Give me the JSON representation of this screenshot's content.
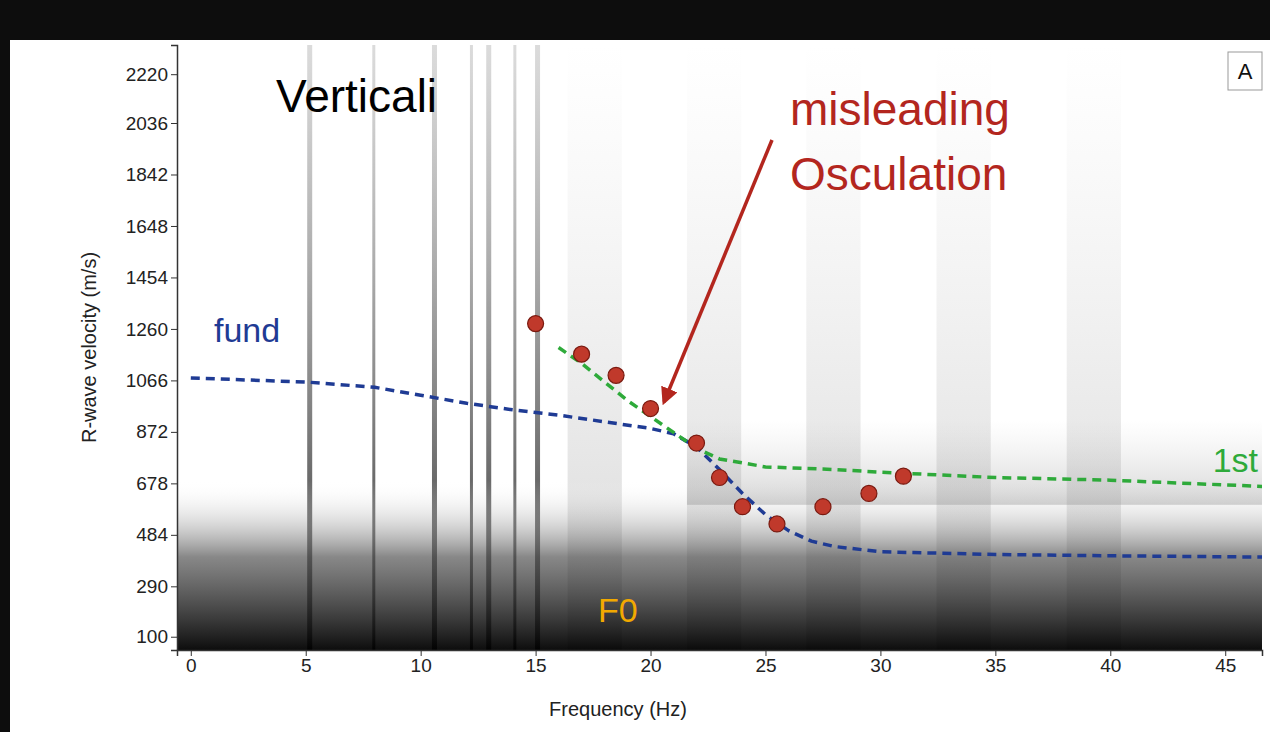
{
  "chart_data": {
    "type": "line",
    "panel_label": "A",
    "x_label": "Frequency (Hz)",
    "y_label": "R-wave velocity (m/s)",
    "xlim": [
      -0.6,
      46.6
    ],
    "xticks": [
      0,
      5,
      10,
      15,
      20,
      25,
      30,
      35,
      40,
      45
    ],
    "ylim": [
      50,
      2330
    ],
    "yticks": [
      100,
      290,
      484,
      678,
      872,
      1066,
      1260,
      1454,
      1648,
      1842,
      2036,
      2220
    ],
    "grid": false,
    "series": [
      {
        "name": "fund",
        "color": "#1f3b94",
        "line_style": "dashed",
        "x": [
          0,
          5,
          8,
          10,
          12,
          14,
          16,
          18,
          20,
          21,
          22,
          23,
          24,
          25,
          26,
          27,
          28,
          30,
          35,
          40,
          47
        ],
        "values": [
          1075,
          1060,
          1040,
          1010,
          980,
          955,
          935,
          910,
          885,
          865,
          815,
          730,
          640,
          560,
          500,
          460,
          440,
          420,
          410,
          405,
          400
        ]
      },
      {
        "name": "1st",
        "color": "#2eaa3a",
        "line_style": "dashed",
        "x": [
          16,
          17,
          18,
          19,
          20,
          21,
          22,
          23,
          25,
          28,
          30,
          35,
          40,
          47
        ],
        "values": [
          1190,
          1130,
          1060,
          990,
          930,
          870,
          810,
          770,
          740,
          730,
          720,
          700,
          690,
          665
        ]
      },
      {
        "type": "scatter",
        "marker": "circle",
        "color": "#c0392b",
        "x": [
          15,
          17,
          18.5,
          20,
          22,
          23,
          24,
          25.5,
          27.5,
          29.5,
          31
        ],
        "values": [
          1280,
          1165,
          1085,
          960,
          830,
          700,
          590,
          525,
          590,
          640,
          705
        ]
      }
    ],
    "annotations": [
      {
        "text": "Verticali",
        "color": "#000000"
      },
      {
        "text": "misleading",
        "color": "#b3261e"
      },
      {
        "text": "Osculation",
        "color": "#b3261e"
      },
      {
        "text": "F0",
        "color": "#f2a900"
      }
    ]
  }
}
